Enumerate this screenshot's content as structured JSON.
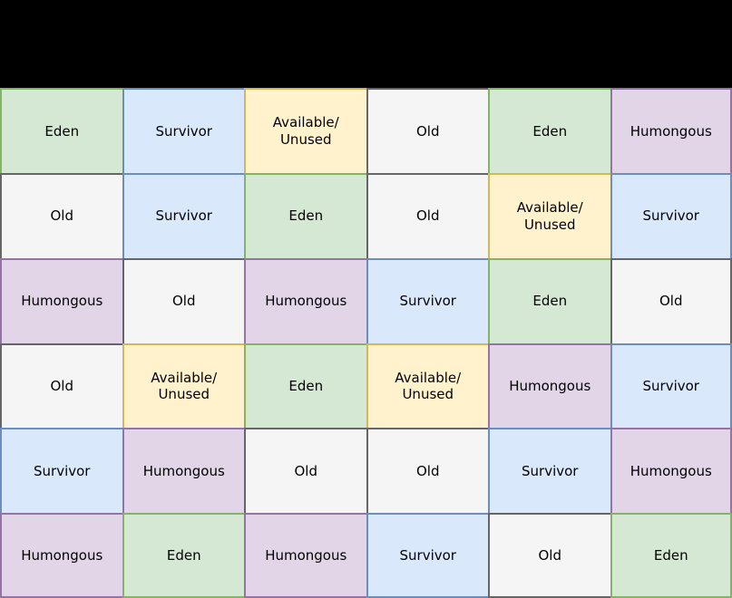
{
  "header": {
    "background": "#000000"
  },
  "palette": {
    "eden": {
      "fill": "#d5e8d4",
      "stroke": "#82b366"
    },
    "survivor": {
      "fill": "#dae8fc",
      "stroke": "#6c8ebf"
    },
    "available": {
      "fill": "#fff2cc",
      "stroke": "#d6b656"
    },
    "old": {
      "fill": "#f5f5f5",
      "stroke": "#666666"
    },
    "humongous": {
      "fill": "#e1d5e7",
      "stroke": "#9673a6"
    }
  },
  "grid": {
    "rows": 6,
    "cols": 6,
    "cells": [
      [
        {
          "label": "Eden",
          "type": "eden"
        },
        {
          "label": "Survivor",
          "type": "survivor"
        },
        {
          "label": "Available/\nUnused",
          "type": "available"
        },
        {
          "label": "Old",
          "type": "old"
        },
        {
          "label": "Eden",
          "type": "eden"
        },
        {
          "label": "Humongous",
          "type": "humongous"
        }
      ],
      [
        {
          "label": "Old",
          "type": "old"
        },
        {
          "label": "Survivor",
          "type": "survivor"
        },
        {
          "label": "Eden",
          "type": "eden"
        },
        {
          "label": "Old",
          "type": "old"
        },
        {
          "label": "Available/\nUnused",
          "type": "available"
        },
        {
          "label": "Survivor",
          "type": "survivor"
        }
      ],
      [
        {
          "label": "Humongous",
          "type": "humongous"
        },
        {
          "label": "Old",
          "type": "old"
        },
        {
          "label": "Humongous",
          "type": "humongous"
        },
        {
          "label": "Survivor",
          "type": "survivor"
        },
        {
          "label": "Eden",
          "type": "eden"
        },
        {
          "label": "Old",
          "type": "old"
        }
      ],
      [
        {
          "label": "Old",
          "type": "old"
        },
        {
          "label": "Available/\nUnused",
          "type": "available"
        },
        {
          "label": "Eden",
          "type": "eden"
        },
        {
          "label": "Available/\nUnused",
          "type": "available"
        },
        {
          "label": "Humongous",
          "type": "humongous"
        },
        {
          "label": "Survivor",
          "type": "survivor"
        }
      ],
      [
        {
          "label": "Survivor",
          "type": "survivor"
        },
        {
          "label": "Humongous",
          "type": "humongous"
        },
        {
          "label": "Old",
          "type": "old"
        },
        {
          "label": "Old",
          "type": "old"
        },
        {
          "label": "Survivor",
          "type": "survivor"
        },
        {
          "label": "Humongous",
          "type": "humongous"
        }
      ],
      [
        {
          "label": "Humongous",
          "type": "humongous"
        },
        {
          "label": "Eden",
          "type": "eden"
        },
        {
          "label": "Humongous",
          "type": "humongous"
        },
        {
          "label": "Survivor",
          "type": "survivor"
        },
        {
          "label": "Old",
          "type": "old"
        },
        {
          "label": "Eden",
          "type": "eden"
        }
      ]
    ]
  }
}
